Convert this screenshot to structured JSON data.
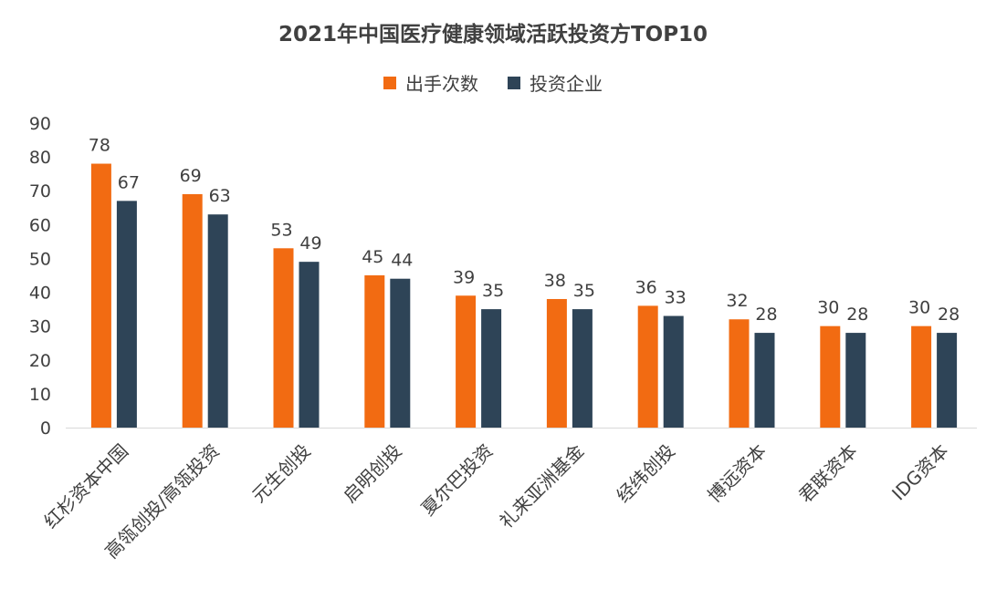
{
  "colors": {
    "series1": "#f26b12",
    "series2": "#2e4457",
    "axis_text": "#404040",
    "axis_line": "#d9d9d9"
  },
  "chart_data": {
    "type": "bar",
    "title": "2021年中国医疗健康领域活跃投资方TOP10",
    "categories": [
      "红杉资本中国",
      "高瓴创投/高瓴投资",
      "元生创投",
      "启明创投",
      "夏尔巴投资",
      "礼来亚洲基金",
      "经纬创投",
      "博远资本",
      "君联资本",
      "IDG资本"
    ],
    "series": [
      {
        "name": "出手次数",
        "values": [
          78,
          69,
          53,
          45,
          39,
          38,
          36,
          32,
          30,
          30
        ]
      },
      {
        "name": "投资企业",
        "values": [
          67,
          63,
          49,
          44,
          35,
          35,
          33,
          28,
          28,
          28
        ]
      }
    ],
    "ylim": [
      0,
      90
    ],
    "yticks": [
      0,
      10,
      20,
      30,
      40,
      50,
      60,
      70,
      80,
      90
    ],
    "grid": false,
    "legend": "top-center"
  }
}
